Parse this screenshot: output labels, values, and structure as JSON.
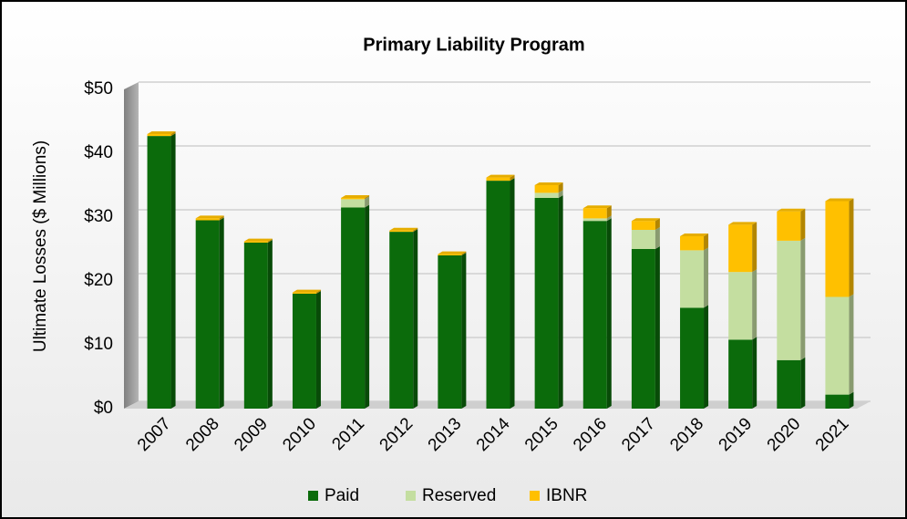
{
  "chart_data": {
    "type": "bar",
    "stacked": true,
    "title": "Primary Liability Program",
    "y_label": "Ultimate Losses ($ Millions)",
    "categories": [
      "2007",
      "2008",
      "2009",
      "2010",
      "2011",
      "2012",
      "2013",
      "2014",
      "2015",
      "2016",
      "2017",
      "2018",
      "2019",
      "2020",
      "2021"
    ],
    "series": [
      {
        "name": "Paid",
        "color": "#0b6b0b",
        "values": [
          42.7,
          29.5,
          26,
          18,
          31.5,
          27.7,
          24,
          35.7,
          33,
          29.4,
          25,
          15.8,
          10.8,
          7.6,
          2.2
        ]
      },
      {
        "name": "Reserved",
        "color": "#c4dea0",
        "values": [
          0,
          0,
          0,
          0,
          1.3,
          0,
          0,
          0,
          0.8,
          0.4,
          3,
          9,
          10.6,
          18.7,
          15.3
        ]
      },
      {
        "name": "IBNR",
        "color": "#ffc000",
        "values": [
          0.3,
          0.3,
          0.2,
          0.2,
          0.2,
          0.2,
          0.2,
          0.5,
          1.2,
          1.6,
          1.4,
          2.2,
          7.4,
          4.6,
          15
        ]
      }
    ],
    "ylim": [
      0,
      50
    ],
    "yticks": [
      {
        "value": 0,
        "label": "$0"
      },
      {
        "value": 10,
        "label": "$10"
      },
      {
        "value": 20,
        "label": "$20"
      },
      {
        "value": 30,
        "label": "$30"
      },
      {
        "value": 40,
        "label": "$40"
      },
      {
        "value": 50,
        "label": "$50"
      }
    ],
    "grid": true,
    "legend": "bottom"
  }
}
